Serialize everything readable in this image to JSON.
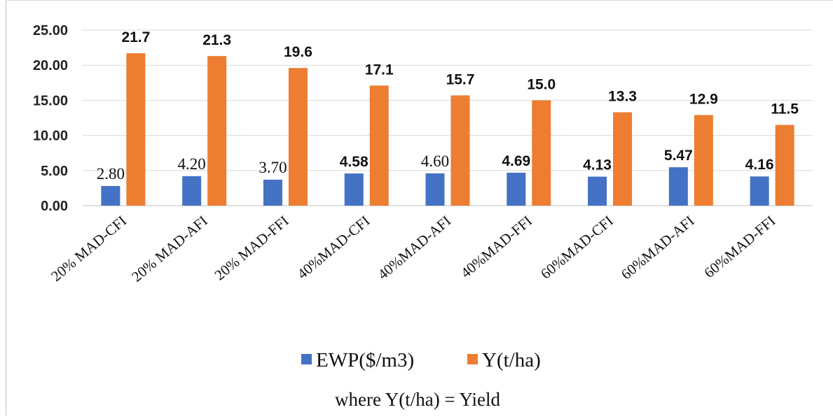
{
  "chart_data": {
    "type": "bar",
    "title": "",
    "xlabel": "",
    "ylabel": "",
    "ylim": [
      0,
      25
    ],
    "yticks": [
      "0.00",
      "5.00",
      "10.00",
      "15.00",
      "20.00",
      "25.00"
    ],
    "grid": true,
    "legend_position": "bottom",
    "categories": [
      "20% MAD-CFI",
      "20% MAD-AFI",
      "20% MAD-FFI",
      "40%MAD-CFI",
      "40%MAD-AFI",
      "40%MAD-FFI",
      "60%MAD-CFI",
      "60%MAD-AFI",
      "60%MAD-FFI"
    ],
    "series": [
      {
        "name": "EWP($/m3)",
        "color": "#4472c4",
        "values": [
          2.8,
          4.2,
          3.7,
          4.58,
          4.6,
          4.69,
          4.13,
          5.47,
          4.16
        ],
        "labels": [
          "2.80",
          "4.20",
          "3.70",
          "4.58",
          "4.60",
          "4.69",
          "4.13",
          "5.47",
          "4.16"
        ]
      },
      {
        "name": "Y(t/ha)",
        "color": "#ed7d31",
        "values": [
          21.7,
          21.3,
          19.6,
          17.1,
          15.7,
          15.0,
          13.3,
          12.9,
          11.5
        ],
        "labels": [
          "21.7",
          "21.3",
          "19.6",
          "17.1",
          "15.7",
          "15.0",
          "13.3",
          "12.9",
          "11.5"
        ]
      }
    ],
    "note": "where Y(t/ha) = Yield"
  }
}
